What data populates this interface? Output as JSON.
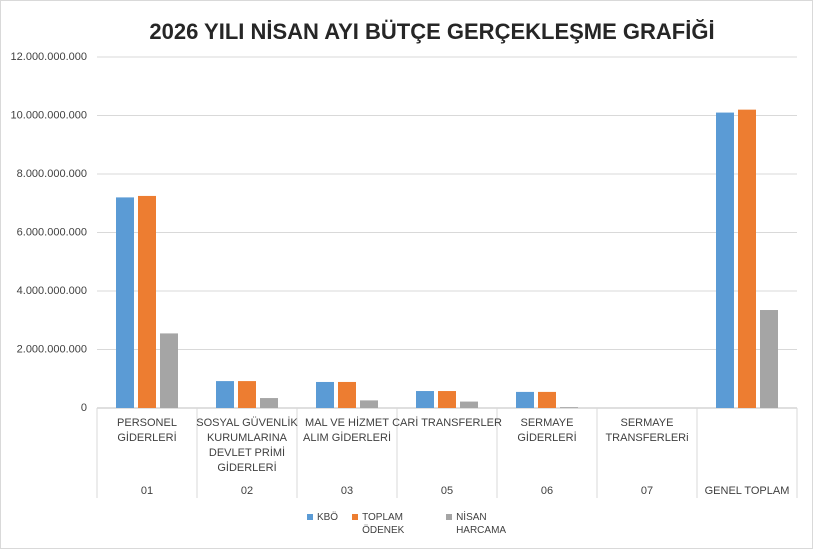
{
  "chart_data": {
    "type": "bar",
    "title": "2026 YILI NİSAN AYI BÜTÇE GERÇEKLEŞME GRAFİĞİ",
    "categories": [
      [
        "PERSONEL",
        "GİDERLERİ"
      ],
      [
        "SOSYAL GÜVENLİK",
        "KURUMLARINA",
        "DEVLET PRİMİ",
        "GİDERLERİ"
      ],
      [
        "MAL VE HİZMET",
        "ALIM GİDERLERİ"
      ],
      [
        "CARİ TRANSFERLER"
      ],
      [
        "SERMAYE",
        "GİDERLERİ"
      ],
      [
        "SERMAYE",
        "TRANSFERLERi"
      ],
      null
    ],
    "groups": [
      "01",
      "02",
      "03",
      "05",
      "06",
      "07",
      "GENEL TOPLAM"
    ],
    "series": [
      {
        "name": "KBÖ",
        "color": "#5b9bd5",
        "values": [
          7200000000,
          920000000,
          890000000,
          580000000,
          550000000,
          0,
          10100000000
        ]
      },
      {
        "name": "TOPLAM ÖDENEK",
        "color": "#ed7d31",
        "values": [
          7250000000,
          920000000,
          890000000,
          580000000,
          550000000,
          0,
          10200000000
        ]
      },
      {
        "name": "NİSAN HARCAMA",
        "color": "#a5a5a5",
        "values": [
          2550000000,
          340000000,
          260000000,
          220000000,
          30000000,
          0,
          3350000000
        ]
      }
    ],
    "ylim": [
      0,
      12000000000
    ],
    "yticks": [
      0,
      {
        "value": 2000000000,
        "label": "2.000.000.000"
      },
      {
        "value": 4000000000,
        "label": "4.000.000.000"
      },
      {
        "value": 6000000000,
        "label": "6.000.000.000"
      },
      {
        "value": 8000000000,
        "label": "8.000.000.000"
      },
      {
        "value": 10000000000,
        "label": "10.000.000.000"
      },
      {
        "value": 12000000000,
        "label": "12.000.000.000"
      }
    ],
    "grid": true,
    "legend": "bottom"
  }
}
